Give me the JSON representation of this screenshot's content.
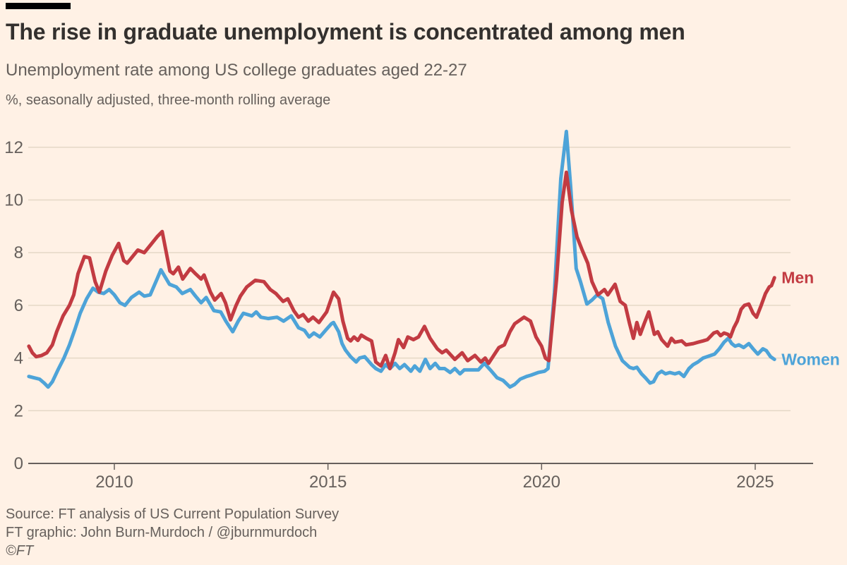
{
  "header": {
    "title": "The rise in graduate unemployment is concentrated among men",
    "subtitle": "Unemployment rate among US college graduates aged 22-27",
    "unit_note": "%, seasonally adjusted, three-month rolling average"
  },
  "footer": {
    "source": "Source: FT analysis of US Current Population Survey",
    "credit": "FT graphic: John Burn-Murdoch / @jburnmurdoch",
    "copyright": "©FT"
  },
  "colors": {
    "background": "#FFF1E5",
    "men": "#C23B42",
    "women": "#4DA3D8",
    "grid": "#E5D8C6",
    "axis": "#66605C",
    "text_primary": "#33302E",
    "text_secondary": "#66605C",
    "topbar": "#000000"
  },
  "chart_data": {
    "type": "line",
    "title": "The rise in graduate unemployment is concentrated among men",
    "subtitle": "Unemployment rate among US college graduates aged 22-27",
    "ylabel": "%, seasonally adjusted, three-month rolling average",
    "xlabel": "",
    "x_ticks": [
      2010,
      2015,
      2020,
      2025
    ],
    "y_ticks": [
      0,
      2,
      4,
      6,
      8,
      10,
      12
    ],
    "xlim": [
      2008,
      2026.4
    ],
    "ylim": [
      0,
      13
    ],
    "grid": true,
    "legend_position": "line-end-labels",
    "series": [
      {
        "name": "Men",
        "label": "Men",
        "color_key": "men",
        "points": [
          [
            2008.0,
            4.45
          ],
          [
            2008.08,
            4.2
          ],
          [
            2008.17,
            4.05
          ],
          [
            2008.3,
            4.1
          ],
          [
            2008.42,
            4.2
          ],
          [
            2008.55,
            4.5
          ],
          [
            2008.65,
            5.0
          ],
          [
            2008.8,
            5.6
          ],
          [
            2008.95,
            6.0
          ],
          [
            2009.05,
            6.4
          ],
          [
            2009.15,
            7.2
          ],
          [
            2009.3,
            7.85
          ],
          [
            2009.42,
            7.8
          ],
          [
            2009.55,
            6.9
          ],
          [
            2009.65,
            6.5
          ],
          [
            2009.8,
            7.3
          ],
          [
            2009.95,
            7.9
          ],
          [
            2010.1,
            8.35
          ],
          [
            2010.22,
            7.7
          ],
          [
            2010.3,
            7.6
          ],
          [
            2010.45,
            7.9
          ],
          [
            2010.55,
            8.1
          ],
          [
            2010.7,
            8.0
          ],
          [
            2010.85,
            8.3
          ],
          [
            2011.0,
            8.6
          ],
          [
            2011.12,
            8.8
          ],
          [
            2011.3,
            7.3
          ],
          [
            2011.38,
            7.2
          ],
          [
            2011.5,
            7.45
          ],
          [
            2011.6,
            7.0
          ],
          [
            2011.78,
            7.4
          ],
          [
            2011.9,
            7.2
          ],
          [
            2012.03,
            7.0
          ],
          [
            2012.1,
            7.15
          ],
          [
            2012.25,
            6.5
          ],
          [
            2012.35,
            6.2
          ],
          [
            2012.5,
            6.45
          ],
          [
            2012.6,
            6.1
          ],
          [
            2012.72,
            5.45
          ],
          [
            2012.85,
            6.0
          ],
          [
            2012.95,
            6.35
          ],
          [
            2013.1,
            6.7
          ],
          [
            2013.3,
            6.95
          ],
          [
            2013.5,
            6.9
          ],
          [
            2013.65,
            6.6
          ],
          [
            2013.78,
            6.45
          ],
          [
            2013.95,
            6.15
          ],
          [
            2014.06,
            6.25
          ],
          [
            2014.2,
            5.8
          ],
          [
            2014.31,
            5.55
          ],
          [
            2014.42,
            5.65
          ],
          [
            2014.54,
            5.4
          ],
          [
            2014.65,
            5.55
          ],
          [
            2014.79,
            5.35
          ],
          [
            2014.97,
            5.75
          ],
          [
            2015.13,
            6.5
          ],
          [
            2015.25,
            6.25
          ],
          [
            2015.35,
            5.4
          ],
          [
            2015.46,
            4.75
          ],
          [
            2015.53,
            4.65
          ],
          [
            2015.61,
            4.8
          ],
          [
            2015.7,
            4.67
          ],
          [
            2015.78,
            4.87
          ],
          [
            2015.9,
            4.75
          ],
          [
            2016.02,
            4.65
          ],
          [
            2016.12,
            3.85
          ],
          [
            2016.24,
            3.7
          ],
          [
            2016.35,
            4.1
          ],
          [
            2016.45,
            3.6
          ],
          [
            2016.57,
            4.2
          ],
          [
            2016.65,
            4.7
          ],
          [
            2016.77,
            4.4
          ],
          [
            2016.87,
            4.8
          ],
          [
            2017.0,
            4.7
          ],
          [
            2017.12,
            4.8
          ],
          [
            2017.26,
            5.2
          ],
          [
            2017.39,
            4.75
          ],
          [
            2017.56,
            4.35
          ],
          [
            2017.67,
            4.2
          ],
          [
            2017.77,
            4.3
          ],
          [
            2017.97,
            3.95
          ],
          [
            2018.14,
            4.2
          ],
          [
            2018.27,
            3.9
          ],
          [
            2018.44,
            4.1
          ],
          [
            2018.58,
            3.85
          ],
          [
            2018.68,
            4.0
          ],
          [
            2018.76,
            3.8
          ],
          [
            2018.88,
            4.1
          ],
          [
            2019.0,
            4.4
          ],
          [
            2019.13,
            4.5
          ],
          [
            2019.26,
            5.0
          ],
          [
            2019.37,
            5.3
          ],
          [
            2019.59,
            5.55
          ],
          [
            2019.74,
            5.4
          ],
          [
            2019.87,
            4.8
          ],
          [
            2020.0,
            4.45
          ],
          [
            2020.09,
            4.0
          ],
          [
            2020.17,
            3.9
          ],
          [
            2020.35,
            7.0
          ],
          [
            2020.48,
            9.9
          ],
          [
            2020.58,
            11.05
          ],
          [
            2020.7,
            9.6
          ],
          [
            2020.83,
            8.6
          ],
          [
            2020.95,
            8.1
          ],
          [
            2021.08,
            7.6
          ],
          [
            2021.18,
            6.9
          ],
          [
            2021.32,
            6.4
          ],
          [
            2021.47,
            6.6
          ],
          [
            2021.55,
            6.4
          ],
          [
            2021.72,
            6.8
          ],
          [
            2021.84,
            6.15
          ],
          [
            2021.96,
            6.0
          ],
          [
            2022.06,
            5.3
          ],
          [
            2022.15,
            4.75
          ],
          [
            2022.23,
            5.35
          ],
          [
            2022.31,
            4.9
          ],
          [
            2022.4,
            5.3
          ],
          [
            2022.51,
            5.75
          ],
          [
            2022.64,
            4.9
          ],
          [
            2022.72,
            5.0
          ],
          [
            2022.81,
            4.7
          ],
          [
            2022.95,
            4.45
          ],
          [
            2023.04,
            4.75
          ],
          [
            2023.12,
            4.6
          ],
          [
            2023.28,
            4.65
          ],
          [
            2023.38,
            4.5
          ],
          [
            2023.55,
            4.55
          ],
          [
            2023.66,
            4.6
          ],
          [
            2023.78,
            4.65
          ],
          [
            2023.88,
            4.7
          ],
          [
            2024.03,
            4.95
          ],
          [
            2024.11,
            5.0
          ],
          [
            2024.19,
            4.85
          ],
          [
            2024.27,
            4.95
          ],
          [
            2024.36,
            4.9
          ],
          [
            2024.42,
            4.8
          ],
          [
            2024.5,
            5.15
          ],
          [
            2024.58,
            5.4
          ],
          [
            2024.67,
            5.85
          ],
          [
            2024.75,
            6.0
          ],
          [
            2024.85,
            6.05
          ],
          [
            2024.95,
            5.7
          ],
          [
            2025.03,
            5.55
          ],
          [
            2025.14,
            6.0
          ],
          [
            2025.24,
            6.45
          ],
          [
            2025.33,
            6.7
          ],
          [
            2025.38,
            6.75
          ],
          [
            2025.45,
            7.05
          ]
        ]
      },
      {
        "name": "Women",
        "label": "Women",
        "color_key": "women",
        "points": [
          [
            2008.0,
            3.3
          ],
          [
            2008.12,
            3.25
          ],
          [
            2008.25,
            3.2
          ],
          [
            2008.36,
            3.05
          ],
          [
            2008.45,
            2.9
          ],
          [
            2008.55,
            3.1
          ],
          [
            2008.68,
            3.55
          ],
          [
            2008.82,
            4.0
          ],
          [
            2008.95,
            4.5
          ],
          [
            2009.08,
            5.1
          ],
          [
            2009.2,
            5.7
          ],
          [
            2009.35,
            6.25
          ],
          [
            2009.5,
            6.65
          ],
          [
            2009.62,
            6.5
          ],
          [
            2009.75,
            6.45
          ],
          [
            2009.88,
            6.6
          ],
          [
            2010.0,
            6.4
          ],
          [
            2010.13,
            6.1
          ],
          [
            2010.25,
            6.0
          ],
          [
            2010.4,
            6.3
          ],
          [
            2010.58,
            6.5
          ],
          [
            2010.7,
            6.35
          ],
          [
            2010.84,
            6.4
          ],
          [
            2011.0,
            7.0
          ],
          [
            2011.09,
            7.35
          ],
          [
            2011.29,
            6.8
          ],
          [
            2011.45,
            6.7
          ],
          [
            2011.59,
            6.45
          ],
          [
            2011.78,
            6.6
          ],
          [
            2011.9,
            6.35
          ],
          [
            2012.03,
            6.1
          ],
          [
            2012.15,
            6.3
          ],
          [
            2012.33,
            5.8
          ],
          [
            2012.49,
            5.75
          ],
          [
            2012.61,
            5.4
          ],
          [
            2012.77,
            5.0
          ],
          [
            2012.9,
            5.4
          ],
          [
            2013.02,
            5.7
          ],
          [
            2013.22,
            5.6
          ],
          [
            2013.32,
            5.75
          ],
          [
            2013.43,
            5.55
          ],
          [
            2013.6,
            5.5
          ],
          [
            2013.81,
            5.55
          ],
          [
            2013.96,
            5.4
          ],
          [
            2014.14,
            5.6
          ],
          [
            2014.31,
            5.15
          ],
          [
            2014.45,
            5.05
          ],
          [
            2014.56,
            4.8
          ],
          [
            2014.67,
            4.95
          ],
          [
            2014.81,
            4.8
          ],
          [
            2014.97,
            5.1
          ],
          [
            2015.08,
            5.3
          ],
          [
            2015.13,
            5.35
          ],
          [
            2015.25,
            5.0
          ],
          [
            2015.33,
            4.55
          ],
          [
            2015.41,
            4.3
          ],
          [
            2015.53,
            4.05
          ],
          [
            2015.66,
            3.85
          ],
          [
            2015.74,
            4.0
          ],
          [
            2015.86,
            4.05
          ],
          [
            2016.02,
            3.75
          ],
          [
            2016.12,
            3.6
          ],
          [
            2016.24,
            3.5
          ],
          [
            2016.35,
            3.75
          ],
          [
            2016.45,
            3.6
          ],
          [
            2016.57,
            3.8
          ],
          [
            2016.68,
            3.6
          ],
          [
            2016.79,
            3.75
          ],
          [
            2016.94,
            3.5
          ],
          [
            2017.03,
            3.7
          ],
          [
            2017.15,
            3.5
          ],
          [
            2017.28,
            3.95
          ],
          [
            2017.39,
            3.6
          ],
          [
            2017.51,
            3.8
          ],
          [
            2017.61,
            3.6
          ],
          [
            2017.73,
            3.6
          ],
          [
            2017.86,
            3.45
          ],
          [
            2017.97,
            3.6
          ],
          [
            2018.09,
            3.4
          ],
          [
            2018.19,
            3.55
          ],
          [
            2018.35,
            3.55
          ],
          [
            2018.52,
            3.55
          ],
          [
            2018.66,
            3.8
          ],
          [
            2018.8,
            3.55
          ],
          [
            2018.96,
            3.25
          ],
          [
            2019.1,
            3.15
          ],
          [
            2019.26,
            2.9
          ],
          [
            2019.37,
            3.0
          ],
          [
            2019.5,
            3.2
          ],
          [
            2019.65,
            3.3
          ],
          [
            2019.75,
            3.35
          ],
          [
            2019.92,
            3.45
          ],
          [
            2020.07,
            3.5
          ],
          [
            2020.15,
            3.6
          ],
          [
            2020.3,
            6.5
          ],
          [
            2020.45,
            10.8
          ],
          [
            2020.58,
            12.6
          ],
          [
            2020.68,
            10.5
          ],
          [
            2020.81,
            7.4
          ],
          [
            2020.91,
            6.9
          ],
          [
            2021.06,
            6.05
          ],
          [
            2021.18,
            6.2
          ],
          [
            2021.3,
            6.4
          ],
          [
            2021.43,
            6.25
          ],
          [
            2021.56,
            5.35
          ],
          [
            2021.73,
            4.45
          ],
          [
            2021.89,
            3.9
          ],
          [
            2022.06,
            3.65
          ],
          [
            2022.15,
            3.6
          ],
          [
            2022.23,
            3.65
          ],
          [
            2022.34,
            3.4
          ],
          [
            2022.43,
            3.25
          ],
          [
            2022.54,
            3.05
          ],
          [
            2022.62,
            3.1
          ],
          [
            2022.72,
            3.4
          ],
          [
            2022.81,
            3.5
          ],
          [
            2022.9,
            3.4
          ],
          [
            2023.0,
            3.45
          ],
          [
            2023.12,
            3.4
          ],
          [
            2023.22,
            3.45
          ],
          [
            2023.33,
            3.3
          ],
          [
            2023.45,
            3.6
          ],
          [
            2023.55,
            3.75
          ],
          [
            2023.66,
            3.85
          ],
          [
            2023.78,
            4.0
          ],
          [
            2023.96,
            4.1
          ],
          [
            2024.05,
            4.15
          ],
          [
            2024.16,
            4.35
          ],
          [
            2024.27,
            4.6
          ],
          [
            2024.37,
            4.75
          ],
          [
            2024.45,
            4.55
          ],
          [
            2024.53,
            4.45
          ],
          [
            2024.62,
            4.5
          ],
          [
            2024.73,
            4.4
          ],
          [
            2024.85,
            4.55
          ],
          [
            2024.95,
            4.35
          ],
          [
            2025.06,
            4.15
          ],
          [
            2025.18,
            4.35
          ],
          [
            2025.26,
            4.28
          ],
          [
            2025.36,
            4.05
          ],
          [
            2025.45,
            3.95
          ]
        ]
      }
    ]
  }
}
